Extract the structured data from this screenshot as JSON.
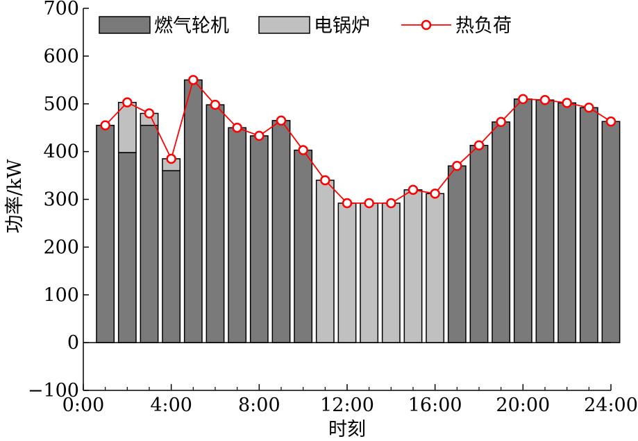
{
  "chart_data": {
    "type": "bar",
    "stacked": true,
    "xlabel": "时刻",
    "ylabel": "功率/kW",
    "ylim": [
      -100,
      700
    ],
    "yticks": [
      -100,
      0,
      100,
      200,
      300,
      400,
      500,
      600,
      700
    ],
    "ytick_labels": [
      "−100",
      "0",
      "100",
      "200",
      "300",
      "400",
      "500",
      "600",
      "700"
    ],
    "xlim": [
      0,
      24
    ],
    "xticks": [
      0,
      4,
      8,
      12,
      16,
      20,
      24
    ],
    "xtick_labels": [
      "0:00",
      "4:00",
      "8:00",
      "12:00",
      "16:00",
      "20:00",
      "24:00"
    ],
    "hours": [
      1,
      2,
      3,
      4,
      5,
      6,
      7,
      8,
      9,
      10,
      11,
      12,
      13,
      14,
      15,
      16,
      17,
      18,
      19,
      20,
      21,
      22,
      23,
      24
    ],
    "legend_position": "top",
    "series": [
      {
        "name": "燃气轮机",
        "kind": "bar",
        "color": "#7a7a7a",
        "values": [
          455,
          398,
          455,
          360,
          550,
          498,
          450,
          433,
          465,
          403,
          0,
          0,
          0,
          0,
          0,
          0,
          370,
          413,
          462,
          510,
          508,
          502,
          492,
          463
        ]
      },
      {
        "name": "电锅炉",
        "kind": "bar",
        "color": "#c0c0c0",
        "values": [
          0,
          105,
          25,
          25,
          0,
          0,
          0,
          0,
          0,
          0,
          340,
          292,
          292,
          292,
          320,
          312,
          0,
          0,
          0,
          0,
          0,
          0,
          0,
          0
        ]
      },
      {
        "name": "热负荷",
        "kind": "line",
        "color": "#ff0000",
        "values": [
          455,
          503,
          480,
          385,
          550,
          498,
          450,
          433,
          465,
          403,
          340,
          292,
          292,
          292,
          320,
          312,
          370,
          413,
          462,
          510,
          508,
          502,
          492,
          463
        ]
      }
    ]
  }
}
